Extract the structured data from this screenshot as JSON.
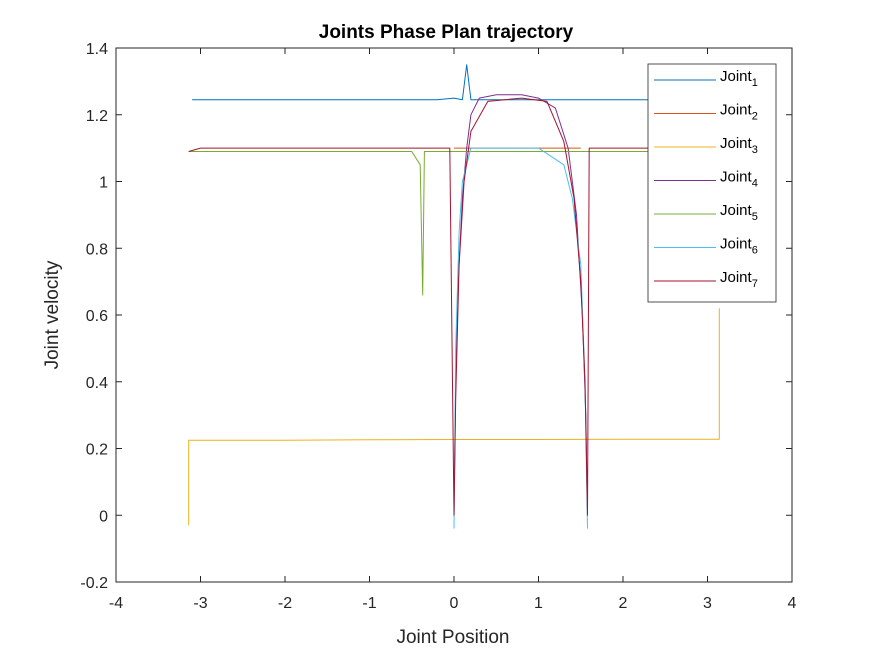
{
  "chart_data": {
    "type": "line",
    "title": "Joints Phase Plan trajectory",
    "xlabel": "Joint Position",
    "ylabel": "Joint velocity",
    "xlim": [
      -4,
      4
    ],
    "ylim": [
      -0.2,
      1.4
    ],
    "xticks": [
      "-4",
      "-3",
      "-2",
      "-1",
      "0",
      "1",
      "2",
      "3",
      "4"
    ],
    "yticks": [
      "-0.2",
      "0",
      "0.2",
      "0.4",
      "0.6",
      "0.8",
      "1",
      "1.2",
      "1.4"
    ],
    "grid": false,
    "legend_position": "top-right",
    "series": [
      {
        "name": "Joint1",
        "label_main": "Joint",
        "label_sub": "1",
        "color": "#0072BD",
        "points": [
          [
            -3.1,
            1.245
          ],
          [
            -3.0,
            1.245
          ],
          [
            -2.8,
            1.245
          ],
          [
            -2.6,
            1.245
          ],
          [
            -2.4,
            1.245
          ],
          [
            -2.2,
            1.245
          ],
          [
            -2.0,
            1.245
          ],
          [
            -1.8,
            1.245
          ],
          [
            -1.6,
            1.245
          ],
          [
            -1.4,
            1.245
          ],
          [
            -1.2,
            1.245
          ],
          [
            -1.0,
            1.245
          ],
          [
            -0.8,
            1.245
          ],
          [
            -0.6,
            1.245
          ],
          [
            -0.4,
            1.245
          ],
          [
            -0.2,
            1.245
          ],
          [
            0.0,
            1.25
          ],
          [
            0.1,
            1.245
          ],
          [
            0.15,
            1.35
          ],
          [
            0.2,
            1.245
          ],
          [
            0.5,
            1.245
          ],
          [
            1.0,
            1.245
          ],
          [
            1.5,
            1.245
          ],
          [
            2.0,
            1.245
          ],
          [
            2.3,
            1.245
          ]
        ]
      },
      {
        "name": "Joint2",
        "label_main": "Joint",
        "label_sub": "2",
        "color": "#D95319",
        "points": [
          [
            0.0,
            1.1
          ],
          [
            0.2,
            1.1
          ],
          [
            0.5,
            1.1
          ],
          [
            0.8,
            1.1
          ],
          [
            1.0,
            1.1
          ],
          [
            1.3,
            1.1
          ],
          [
            1.5,
            1.1
          ]
        ]
      },
      {
        "name": "Joint3",
        "label_main": "Joint",
        "label_sub": "3",
        "color": "#EDB120",
        "points": [
          [
            -3.14,
            -0.03
          ],
          [
            -3.14,
            0.225
          ],
          [
            -2.0,
            0.225
          ],
          [
            -1.0,
            0.226
          ],
          [
            0.0,
            0.227
          ],
          [
            1.0,
            0.227
          ],
          [
            2.0,
            0.228
          ],
          [
            3.14,
            0.228
          ],
          [
            3.14,
            0.62
          ]
        ]
      },
      {
        "name": "Joint4",
        "label_main": "Joint",
        "label_sub": "4",
        "color": "#7E2F8E",
        "points": [
          [
            0.0,
            0.0
          ],
          [
            0.02,
            0.4
          ],
          [
            0.05,
            0.7
          ],
          [
            0.1,
            0.95
          ],
          [
            0.15,
            1.1
          ],
          [
            0.2,
            1.2
          ],
          [
            0.3,
            1.25
          ],
          [
            0.5,
            1.26
          ],
          [
            0.8,
            1.26
          ],
          [
            1.0,
            1.25
          ],
          [
            1.2,
            1.22
          ],
          [
            1.35,
            1.1
          ],
          [
            1.45,
            0.9
          ],
          [
            1.52,
            0.6
          ],
          [
            1.56,
            0.3
          ],
          [
            1.58,
            0.0
          ]
        ]
      },
      {
        "name": "Joint5",
        "label_main": "Joint",
        "label_sub": "5",
        "color": "#77AC30",
        "points": [
          [
            -3.14,
            1.09
          ],
          [
            -2.5,
            1.09
          ],
          [
            -2.0,
            1.09
          ],
          [
            -1.0,
            1.09
          ],
          [
            -0.5,
            1.09
          ],
          [
            -0.4,
            1.05
          ],
          [
            -0.37,
            0.66
          ],
          [
            -0.35,
            1.09
          ],
          [
            0.0,
            1.09
          ],
          [
            0.5,
            1.09
          ],
          [
            1.0,
            1.09
          ],
          [
            2.0,
            1.09
          ],
          [
            3.14,
            1.09
          ]
        ]
      },
      {
        "name": "Joint6",
        "label_main": "Joint",
        "label_sub": "6",
        "color": "#4DBEEE",
        "points": [
          [
            0.0,
            -0.04
          ],
          [
            0.02,
            0.5
          ],
          [
            0.06,
            0.85
          ],
          [
            0.1,
            1.0
          ],
          [
            0.2,
            1.1
          ],
          [
            0.5,
            1.1
          ],
          [
            1.0,
            1.1
          ],
          [
            1.3,
            1.05
          ],
          [
            1.4,
            0.95
          ],
          [
            1.5,
            0.75
          ],
          [
            1.55,
            0.4
          ],
          [
            1.58,
            -0.04
          ]
        ]
      },
      {
        "name": "Joint7",
        "label_main": "Joint",
        "label_sub": "7",
        "color": "#A2142F",
        "points": [
          [
            -3.14,
            1.09
          ],
          [
            -3.0,
            1.1
          ],
          [
            -2.6,
            1.1
          ],
          [
            -2.2,
            1.1
          ],
          [
            -1.8,
            1.1
          ],
          [
            -1.4,
            1.1
          ],
          [
            -1.0,
            1.1
          ],
          [
            -0.6,
            1.1
          ],
          [
            -0.3,
            1.1
          ],
          [
            -0.05,
            1.1
          ],
          [
            0.0,
            0.0
          ],
          [
            0.02,
            0.35
          ],
          [
            0.06,
            0.75
          ],
          [
            0.12,
            1.0
          ],
          [
            0.2,
            1.15
          ],
          [
            0.4,
            1.24
          ],
          [
            0.8,
            1.25
          ],
          [
            1.1,
            1.24
          ],
          [
            1.3,
            1.12
          ],
          [
            1.42,
            0.95
          ],
          [
            1.5,
            0.7
          ],
          [
            1.55,
            0.4
          ],
          [
            1.58,
            0.0
          ],
          [
            1.6,
            1.1
          ],
          [
            2.0,
            1.1
          ],
          [
            2.5,
            1.1
          ],
          [
            3.0,
            1.1
          ],
          [
            3.14,
            1.1
          ]
        ]
      }
    ]
  }
}
